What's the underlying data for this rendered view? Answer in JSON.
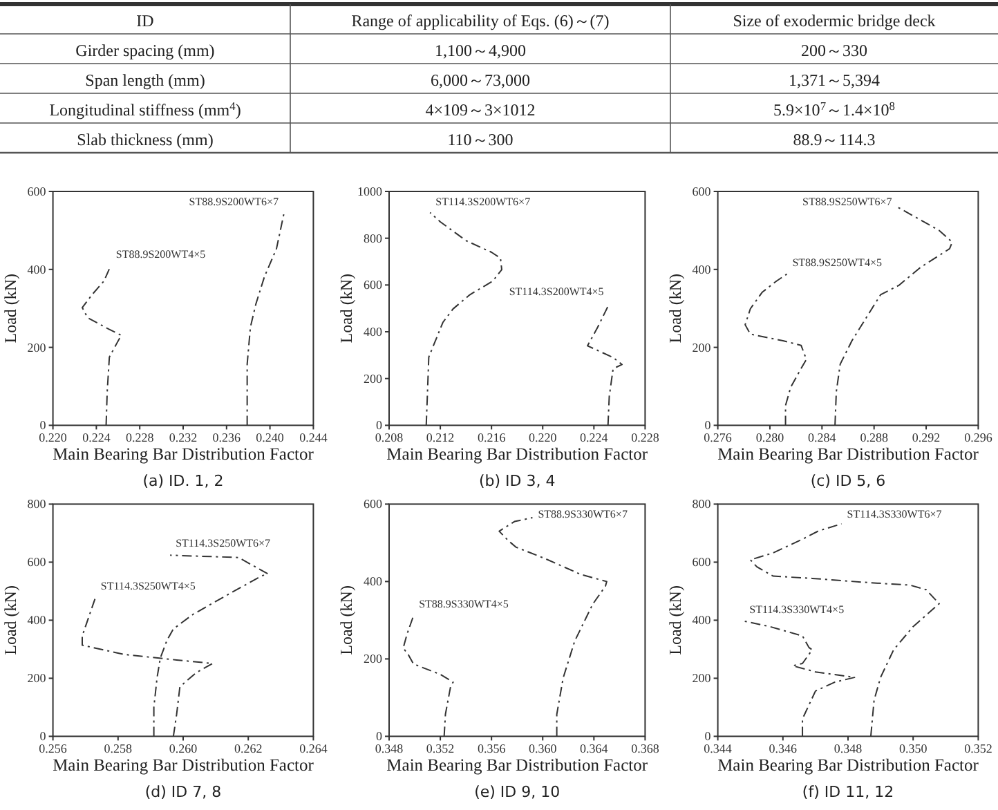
{
  "chart_data": [
    {
      "type": "other",
      "categories": [
        "ID",
        "Range of applicability of Eqs. (6)～(7)",
        "Size of exodermic bridge deck"
      ],
      "annotations": [
        "Girder spacing (mm)",
        "1,100～4,900",
        "200～330",
        "Span length (mm)",
        "6,000～73,000",
        "1,371～5,394",
        "Longitudinal stiffness (mm$^{4}$)",
        "4×109～3×1012",
        "5.9×10$^{7}$～1.4×10$^{8}$",
        "Slab thickness (mm)",
        "110～300",
        "88.9～114.3"
      ]
    },
    {
      "type": "line",
      "title": "(a) ID. 1, 2",
      "xlabel": "Main Bearing Bar Distribution Factor",
      "ylabel": "Load (kN)",
      "line_style": "dashed",
      "xlim": [
        0.22,
        0.244
      ],
      "ylim": [
        0,
        600
      ],
      "xticks": [
        {
          "value": 0.22,
          "label": "0.220"
        },
        {
          "value": 0.224,
          "label": "0.224"
        },
        {
          "value": 0.228,
          "label": "0.228"
        },
        {
          "value": 0.232,
          "label": "0.232"
        },
        {
          "value": 0.236,
          "label": "0.236"
        },
        {
          "value": 0.24,
          "label": "0.240"
        },
        {
          "value": 0.244,
          "label": "0.244"
        }
      ],
      "yticks": [
        0,
        200,
        400,
        600
      ],
      "series": [
        {
          "name": "ST88.9S200WT4×5",
          "color": "#333333",
          "x": [
            0.2249,
            0.225,
            0.2252,
            0.2259,
            0.2263,
            0.2252,
            0.2232,
            0.2227,
            0.2236,
            0.2247,
            0.2253
          ],
          "values": [
            0,
            86,
            175,
            211,
            231,
            246,
            276,
            302,
            335,
            370,
            408
          ]
        },
        {
          "name": "ST88.9S200WT6×7",
          "color": "#333333",
          "x": [
            0.2379,
            0.2379,
            0.2382,
            0.2387,
            0.2395,
            0.2406,
            0.2413
          ],
          "values": [
            0,
            157,
            252,
            311,
            382,
            453,
            545
          ]
        }
      ]
    },
    {
      "type": "line",
      "title": "(b) ID 3, 4",
      "xlabel": "Main Bearing Bar Distribution Factor",
      "ylabel": "Load (kN)",
      "line_style": "dashed",
      "xlim": [
        0.208,
        0.228
      ],
      "ylim": [
        0,
        1000
      ],
      "xticks": [
        {
          "value": 0.208,
          "label": "0.208"
        },
        {
          "value": 0.212,
          "label": "0.212"
        },
        {
          "value": 0.216,
          "label": "0.216"
        },
        {
          "value": 0.22,
          "label": "0.220"
        },
        {
          "value": 0.224,
          "label": "0.224"
        },
        {
          "value": 0.228,
          "label": "0.228"
        }
      ],
      "yticks": [
        0,
        200,
        400,
        600,
        800,
        1000
      ],
      "series": [
        {
          "name": "ST114.3S200WT6×7",
          "color": "#333333",
          "x": [
            0.2109,
            0.211,
            0.2111,
            0.2122,
            0.213,
            0.2143,
            0.2161,
            0.2168,
            0.2167,
            0.216,
            0.214,
            0.212,
            0.2112
          ],
          "values": [
            0,
            144,
            292,
            440,
            498,
            558,
            617,
            666,
            715,
            740,
            790,
            870,
            910
          ]
        },
        {
          "name": "ST114.3S200WT4×5",
          "color": "#333333",
          "x": [
            0.2251,
            0.2252,
            0.2255,
            0.2262,
            0.2255,
            0.2235,
            0.2243,
            0.2252
          ],
          "values": [
            0,
            124,
            242,
            260,
            290,
            340,
            420,
            520
          ]
        }
      ]
    },
    {
      "type": "line",
      "title": "(c) ID 5, 6",
      "xlabel": "Main Bearing Bar Distribution Factor",
      "ylabel": "Load (kN)",
      "line_style": "dashed",
      "xlim": [
        0.276,
        0.296
      ],
      "ylim": [
        0,
        600
      ],
      "xticks": [
        {
          "value": 0.276,
          "label": "0.276"
        },
        {
          "value": 0.28,
          "label": "0.280"
        },
        {
          "value": 0.284,
          "label": "0.284"
        },
        {
          "value": 0.288,
          "label": "0.288"
        },
        {
          "value": 0.292,
          "label": "0.292"
        },
        {
          "value": 0.296,
          "label": "0.296"
        }
      ],
      "yticks": [
        0,
        200,
        400,
        600
      ],
      "series": [
        {
          "name": "ST88.9S250WT4×5",
          "color": "#333333",
          "x": [
            0.2812,
            0.2812,
            0.2816,
            0.2824,
            0.2828,
            0.2824,
            0.281,
            0.2785,
            0.2781,
            0.2785,
            0.2794,
            0.2805,
            0.2813
          ],
          "values": [
            0,
            51,
            98,
            146,
            169,
            205,
            217,
            234,
            258,
            299,
            341,
            370,
            388
          ]
        },
        {
          "name": "ST88.9S250WT6×7",
          "color": "#333333",
          "x": [
            0.285,
            0.2851,
            0.2854,
            0.2863,
            0.2874,
            0.2885,
            0.2899,
            0.2916,
            0.2938,
            0.294,
            0.293,
            0.2898
          ],
          "values": [
            0,
            86,
            157,
            217,
            276,
            335,
            359,
            406,
            453,
            470,
            500,
            560
          ]
        }
      ]
    },
    {
      "type": "line",
      "title": "(d) ID 7, 8",
      "xlabel": "Main Bearing Bar Distribution Factor",
      "ylabel": "Load (kN)",
      "line_style": "dashed",
      "xlim": [
        0.256,
        0.264
      ],
      "ylim": [
        0,
        800
      ],
      "xticks": [
        {
          "value": 0.256,
          "label": "0.256"
        },
        {
          "value": 0.258,
          "label": "0.258"
        },
        {
          "value": 0.26,
          "label": "0.260"
        },
        {
          "value": 0.262,
          "label": "0.262"
        },
        {
          "value": 0.264,
          "label": "0.264"
        }
      ],
      "yticks": [
        0,
        200,
        400,
        600,
        800
      ],
      "series": [
        {
          "name": "ST114.3S250WT6×7",
          "color": "#333333",
          "x": [
            0.2591,
            0.2591,
            0.2592,
            0.2593,
            0.2595,
            0.2597,
            0.2603,
            0.2614,
            0.2624,
            0.2626,
            0.2617,
            0.2596
          ],
          "values": [
            0,
            100,
            203,
            270,
            330,
            370,
            420,
            490,
            552,
            560,
            616,
            624
          ]
        },
        {
          "name": "ST114.3S250WT4×5",
          "color": "#333333",
          "x": [
            0.2597,
            0.2598,
            0.2599,
            0.2604,
            0.2609,
            0.2598,
            0.2582,
            0.2569,
            0.2569,
            0.2573
          ],
          "values": [
            0,
            76,
            171,
            219,
            251,
            263,
            282,
            314,
            346,
            476
          ]
        }
      ]
    },
    {
      "type": "line",
      "title": "(e) ID 9, 10",
      "xlabel": "Main Bearing Bar Distribution Factor",
      "ylabel": "Load (kN)",
      "line_style": "dashed",
      "xlim": [
        0.348,
        0.368
      ],
      "ylim": [
        0,
        600
      ],
      "xticks": [
        {
          "value": 0.348,
          "label": "0.348"
        },
        {
          "value": 0.352,
          "label": "0.352"
        },
        {
          "value": 0.356,
          "label": "0.356"
        },
        {
          "value": 0.36,
          "label": "0.360"
        },
        {
          "value": 0.364,
          "label": "0.364"
        },
        {
          "value": 0.368,
          "label": "0.368"
        }
      ],
      "yticks": [
        0,
        200,
        400,
        600
      ],
      "series": [
        {
          "name": "ST88.9S330WT4×5",
          "color": "#333333",
          "x": [
            0.3523,
            0.3524,
            0.3528,
            0.353,
            0.352,
            0.3499,
            0.3495,
            0.3491,
            0.3494,
            0.3499
          ],
          "values": [
            0,
            57,
            128,
            140,
            160,
            187,
            211,
            228,
            264,
            311
          ]
        },
        {
          "name": "ST88.9S330WT6×7",
          "color": "#333333",
          "x": [
            0.3611,
            0.3611,
            0.3616,
            0.3625,
            0.3639,
            0.3649,
            0.365,
            0.363,
            0.3602,
            0.3579,
            0.3573,
            0.3566,
            0.3578,
            0.3592
          ],
          "values": [
            0,
            57,
            151,
            246,
            341,
            388,
            400,
            418,
            459,
            489,
            506,
            530,
            555,
            565
          ]
        }
      ]
    },
    {
      "type": "line",
      "title": "(f) ID 11, 12",
      "xlabel": "Main Bearing Bar Distribution Factor",
      "ylabel": "Load (kN)",
      "line_style": "dashed",
      "xlim": [
        0.344,
        0.352
      ],
      "ylim": [
        0,
        800
      ],
      "xticks": [
        {
          "value": 0.344,
          "label": "0.344"
        },
        {
          "value": 0.346,
          "label": "0.346"
        },
        {
          "value": 0.348,
          "label": "0.348"
        },
        {
          "value": 0.35,
          "label": "0.350"
        },
        {
          "value": 0.352,
          "label": "0.352"
        }
      ],
      "yticks": [
        0,
        200,
        400,
        600,
        800
      ],
      "series": [
        {
          "name": "ST114.3S330WT4×5",
          "color": "#333333",
          "x": [
            0.3466,
            0.3466,
            0.347,
            0.3476,
            0.3482,
            0.3477,
            0.347,
            0.3463,
            0.3466,
            0.3469,
            0.3468,
            0.3466,
            0.3456,
            0.3448
          ],
          "values": [
            0,
            60,
            156,
            187,
            203,
            211,
            222,
            243,
            251,
            298,
            306,
            346,
            378,
            397
          ]
        },
        {
          "name": "ST114.3S330WT6×7",
          "color": "#333333",
          "x": [
            0.3487,
            0.3488,
            0.349,
            0.3494,
            0.35,
            0.3508,
            0.3504,
            0.3499,
            0.3487,
            0.3469,
            0.3457,
            0.3452,
            0.345,
            0.3457,
            0.3466,
            0.3471,
            0.3478
          ],
          "values": [
            0,
            124,
            203,
            298,
            378,
            457,
            505,
            521,
            529,
            544,
            552,
            584,
            608,
            632,
            679,
            708,
            732
          ]
        }
      ]
    }
  ]
}
